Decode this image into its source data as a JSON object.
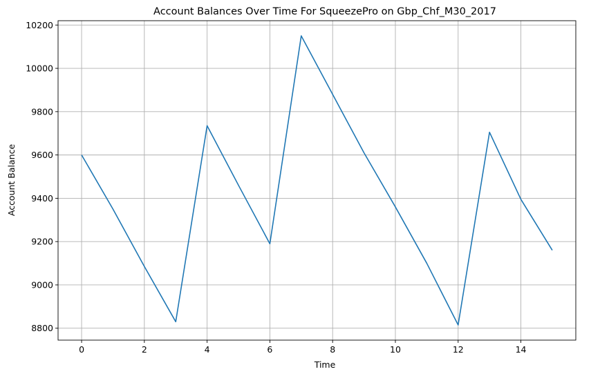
{
  "chart_data": {
    "type": "line",
    "title": "Account Balances Over Time For SqueezePro on Gbp_Chf_M30_2017",
    "xlabel": "Time",
    "ylabel": "Account Balance",
    "xlim": [
      -0.75,
      15.75
    ],
    "ylim": [
      8745,
      10220
    ],
    "xticks": [
      0,
      2,
      4,
      6,
      8,
      10,
      12,
      14
    ],
    "yticks": [
      8800,
      9000,
      9200,
      9400,
      9600,
      9800,
      10000,
      10200
    ],
    "grid": true,
    "series": [
      {
        "color": "#1f77b4",
        "x": [
          0,
          1,
          2,
          3,
          4,
          5,
          6,
          7,
          8,
          9,
          10,
          11,
          12,
          13,
          14,
          15
        ],
        "y": [
          9600,
          9350,
          9085,
          8830,
          9735,
          9460,
          9190,
          10150,
          9880,
          9610,
          9360,
          9100,
          8815,
          9705,
          9395,
          9160
        ]
      }
    ]
  }
}
